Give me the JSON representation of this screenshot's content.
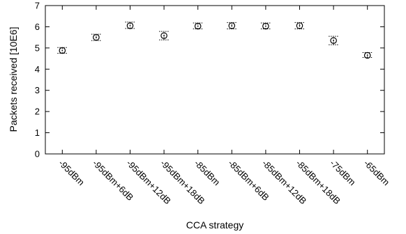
{
  "chart_data": {
    "type": "scatter",
    "xlabel": "CCA strategy",
    "ylabel": "Packets received [10E6]",
    "ylim": [
      0,
      7
    ],
    "yticks": [
      0,
      1,
      2,
      3,
      4,
      5,
      6,
      7
    ],
    "categories": [
      "-95dBm",
      "-95dBm+6dB",
      "-95dBm+12dB",
      "-95dBm+18dB",
      "-85dBm",
      "-85dBm+6dB",
      "-85dBm+12dB",
      "-85dBm+18dB",
      "-75dBm",
      "-65dBm"
    ],
    "values": [
      4.88,
      5.5,
      6.05,
      5.58,
      6.03,
      6.05,
      6.03,
      6.05,
      5.35,
      4.65
    ],
    "error_low": [
      4.75,
      5.35,
      5.92,
      5.38,
      5.9,
      5.9,
      5.9,
      5.9,
      5.15,
      4.55
    ],
    "error_high": [
      5.02,
      5.65,
      6.22,
      5.78,
      6.18,
      6.2,
      6.18,
      6.2,
      5.55,
      4.78
    ],
    "legend": "none",
    "grid": false
  }
}
